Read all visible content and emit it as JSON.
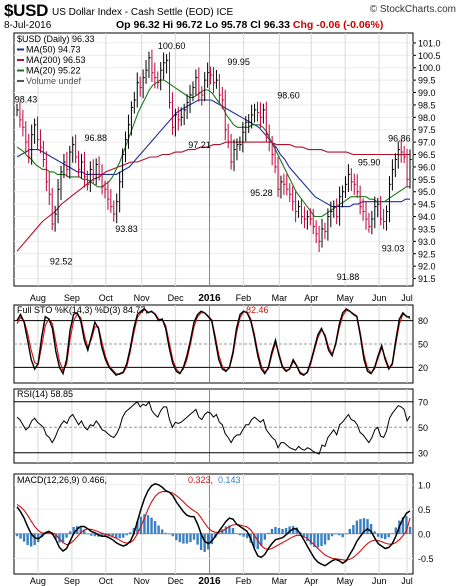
{
  "header": {
    "ticker": "$USD",
    "name": "US Dollar Index - Cash Settle (EOD) ICE",
    "brand": "© StockCharts.com",
    "date": "8-Jul-2016",
    "op": "Op 96.32",
    "hi": "Hi 96.72",
    "lo": "Lo 95.78",
    "cl": "Cl 96.33",
    "chg": "Chg -0.06 (-0.06%)"
  },
  "colors": {
    "price_up": "#000000",
    "price_down": "#c0003c",
    "ma50": "#1f2fa0",
    "ma200": "#b0102a",
    "ma20": "#1a7a1a",
    "sto_k": "#000000",
    "sto_d": "#d01010",
    "rsi": "#000000",
    "macd": "#000000",
    "macd_signal": "#d01010",
    "macd_hist": "#3a7fc0"
  },
  "chart_data": [
    {
      "type": "line",
      "panel": "price",
      "legend": [
        {
          "text": "$USD (Daily) 96.33",
          "color": "#000000"
        },
        {
          "text": "MA(50) 94.73",
          "color": "#1f2fa0"
        },
        {
          "text": "MA(200) 96.53",
          "color": "#b0102a"
        },
        {
          "text": "MA(20) 95.22",
          "color": "#1a7a1a"
        },
        {
          "text": "Volume undef",
          "color": "#555555"
        }
      ],
      "x_ticks": [
        "Aug",
        "Sep",
        "Oct",
        "Nov",
        "Dec",
        "2016",
        "Feb",
        "Mar",
        "Apr",
        "May",
        "Jun",
        "Jul"
      ],
      "y_ticks": [
        91.5,
        92.0,
        92.5,
        93.0,
        93.5,
        94.0,
        94.5,
        95.0,
        95.5,
        96.0,
        96.5,
        97.0,
        97.5,
        98.0,
        98.5,
        99.0,
        99.5,
        100.0,
        100.5,
        101.0
      ],
      "ylim": [
        91.2,
        101.4
      ],
      "annotations": [
        {
          "label": "98.43",
          "x": 0.03,
          "y": 98.43,
          "pos": "above"
        },
        {
          "label": "92.52",
          "x": 0.118,
          "y": 92.52,
          "pos": "below"
        },
        {
          "label": "96.88",
          "x": 0.205,
          "y": 96.88,
          "pos": "above"
        },
        {
          "label": "93.83",
          "x": 0.282,
          "y": 93.83,
          "pos": "below"
        },
        {
          "label": "100.60",
          "x": 0.395,
          "y": 100.6,
          "pos": "above"
        },
        {
          "label": "97.21",
          "x": 0.465,
          "y": 97.21,
          "pos": "below"
        },
        {
          "label": "99.95",
          "x": 0.563,
          "y": 99.95,
          "pos": "above"
        },
        {
          "label": "95.28",
          "x": 0.62,
          "y": 95.28,
          "pos": "below"
        },
        {
          "label": "98.60",
          "x": 0.688,
          "y": 98.6,
          "pos": "above"
        },
        {
          "label": "91.88",
          "x": 0.837,
          "y": 91.88,
          "pos": "below"
        },
        {
          "label": "95.90",
          "x": 0.89,
          "y": 95.9,
          "pos": "above"
        },
        {
          "label": "93.03",
          "x": 0.95,
          "y": 93.03,
          "pos": "below"
        },
        {
          "label": "96.86",
          "x": 0.966,
          "y": 96.86,
          "pos": "above"
        }
      ],
      "price": [
        98.3,
        97.9,
        97.6,
        97.0,
        96.4,
        97.3,
        97.7,
        97.1,
        96.8,
        96.3,
        95.4,
        94.9,
        93.7,
        94.1,
        95.1,
        95.8,
        96.2,
        95.9,
        96.6,
        96.9,
        96.4,
        95.9,
        96.2,
        95.6,
        95.3,
        95.9,
        95.7,
        96.1,
        95.7,
        95.2,
        95.1,
        94.7,
        94.4,
        94.1,
        94.6,
        95.4,
        96.5,
        97.1,
        97.7,
        98.4,
        98.7,
        99.4,
        99.2,
        99.6,
        99.9,
        100.4,
        99.8,
        99.6,
        99.4,
        99.9,
        100.2,
        100.3,
        98.6,
        97.6,
        98.1,
        97.9,
        98.0,
        98.3,
        98.6,
        98.9,
        99.2,
        99.6,
        99.0,
        98.9,
        99.5,
        99.8,
        99.7,
        99.4,
        99.5,
        98.9,
        98.7,
        97.5,
        97.0,
        96.2,
        96.7,
        96.9,
        96.9,
        97.4,
        97.8,
        97.8,
        98.1,
        98.3,
        98.2,
        98.0,
        98.3,
        97.3,
        97.0,
        96.5,
        96.0,
        95.1,
        95.4,
        95.3,
        95.1,
        94.9,
        94.6,
        94.2,
        94.4,
        94.0,
        93.9,
        94.0,
        93.9,
        93.6,
        93.3,
        93.0,
        93.5,
        93.4,
        94.0,
        94.2,
        94.4,
        94.0,
        94.8,
        95.0,
        95.3,
        95.7,
        95.4,
        95.3,
        95.0,
        94.4,
        94.2,
        93.9,
        93.6,
        93.9,
        94.4,
        94.5,
        93.9,
        93.8,
        94.2,
        95.3,
        95.9,
        96.3,
        96.7,
        96.6,
        96.4,
        95.5,
        96.3
      ],
      "ma20": [
        96.8,
        96.7,
        96.6,
        96.4,
        96.3,
        96.1,
        96.0,
        95.9,
        95.9,
        95.8,
        95.8,
        95.7,
        95.7,
        95.7,
        95.6,
        95.6,
        95.6,
        95.6,
        95.5,
        95.5,
        95.4,
        95.3,
        95.2,
        95.2,
        95.3,
        95.4,
        95.6,
        95.9,
        96.2,
        96.6,
        97.0,
        97.4,
        97.8,
        98.2,
        98.5,
        98.8,
        99.1,
        99.3,
        99.4,
        99.5,
        99.5,
        99.4,
        99.3,
        99.2,
        99.1,
        99.0,
        98.9,
        98.8,
        98.8,
        98.9,
        99.0,
        99.1,
        99.1,
        99.0,
        98.8,
        98.6,
        98.4,
        98.1,
        97.9,
        97.7,
        97.6,
        97.6,
        97.6,
        97.6,
        97.7,
        97.7,
        97.7,
        97.6,
        97.4,
        97.1,
        96.8,
        96.5,
        96.2,
        95.9,
        95.6,
        95.3,
        95.0,
        94.8,
        94.6,
        94.4,
        94.2,
        94.0,
        94.0,
        94.0,
        94.1,
        94.2,
        94.3,
        94.4,
        94.5,
        94.6,
        94.7,
        94.8,
        94.8,
        94.8,
        94.8,
        94.8,
        94.7,
        94.7,
        94.6,
        94.6,
        94.6,
        94.7,
        94.8,
        94.9,
        95.0,
        95.1,
        95.2,
        95.2
      ],
      "ma50": [
        96.4,
        96.5,
        96.6,
        96.7,
        96.7,
        96.7,
        96.6,
        96.5,
        96.4,
        96.3,
        96.2,
        96.1,
        96.0,
        95.9,
        95.8,
        95.8,
        95.7,
        95.7,
        95.7,
        95.7,
        95.7,
        95.7,
        95.7,
        95.7,
        95.8,
        95.9,
        96.0,
        96.2,
        96.4,
        96.6,
        96.8,
        97.0,
        97.2,
        97.4,
        97.6,
        97.8,
        98.0,
        98.2,
        98.3,
        98.4,
        98.5,
        98.6,
        98.7,
        98.7,
        98.7,
        98.7,
        98.6,
        98.5,
        98.4,
        98.3,
        98.2,
        98.1,
        98.0,
        97.9,
        97.8,
        97.7,
        97.6,
        97.4,
        97.2,
        97.0,
        96.8,
        96.5,
        96.3,
        96.0,
        95.8,
        95.6,
        95.4,
        95.2,
        95.0,
        94.8,
        94.7,
        94.6,
        94.5,
        94.4,
        94.4,
        94.4,
        94.4,
        94.4,
        94.5,
        94.5,
        94.6,
        94.6,
        94.6,
        94.6,
        94.6,
        94.6,
        94.6,
        94.6,
        94.6,
        94.6,
        94.7,
        94.7
      ],
      "ma200": [
        92.6,
        92.9,
        93.2,
        93.5,
        93.8,
        94.0,
        94.2,
        94.5,
        94.7,
        94.9,
        95.1,
        95.3,
        95.5,
        95.6,
        95.8,
        95.9,
        96.0,
        96.1,
        96.2,
        96.2,
        96.3,
        96.4,
        96.4,
        96.5,
        96.5,
        96.6,
        96.6,
        96.7,
        96.7,
        96.8,
        96.8,
        96.9,
        96.9,
        97.0,
        97.0,
        97.0,
        97.0,
        97.0,
        97.0,
        97.0,
        97.0,
        96.9,
        96.9,
        96.9,
        96.8,
        96.8,
        96.7,
        96.7,
        96.7,
        96.6,
        96.6,
        96.6,
        96.6,
        96.5,
        96.5,
        96.5,
        96.5,
        96.5,
        96.5,
        96.5,
        96.5,
        96.5,
        96.5
      ]
    },
    {
      "type": "line",
      "panel": "stochastic",
      "legend_label": "Full STO %K(14,3) %D(3) 84.77,",
      "legend_value2": "82.46",
      "y_ticks": [
        20,
        50,
        80
      ],
      "ylim": [
        0,
        100
      ],
      "k": [
        80,
        88,
        78,
        55,
        30,
        18,
        25,
        60,
        85,
        82,
        70,
        40,
        20,
        12,
        30,
        68,
        88,
        90,
        80,
        55,
        42,
        60,
        78,
        70,
        45,
        30,
        20,
        15,
        10,
        12,
        14,
        25,
        45,
        70,
        88,
        92,
        95,
        90,
        92,
        88,
        80,
        82,
        70,
        45,
        25,
        15,
        12,
        20,
        35,
        55,
        78,
        88,
        92,
        90,
        85,
        80,
        55,
        30,
        18,
        15,
        20,
        40,
        70,
        88,
        92,
        90,
        80,
        60,
        35,
        18,
        12,
        20,
        40,
        55,
        35,
        20,
        15,
        18,
        30,
        22,
        12,
        10,
        14,
        28,
        45,
        62,
        70,
        60,
        42,
        35,
        50,
        75,
        90,
        95,
        92,
        88,
        85,
        60,
        30,
        15,
        12,
        20,
        35,
        48,
        30,
        18,
        25,
        55,
        82,
        90,
        85,
        84.77
      ],
      "d": [
        76,
        84,
        80,
        64,
        42,
        26,
        24,
        48,
        74,
        82,
        76,
        52,
        28,
        16,
        24,
        56,
        80,
        88,
        84,
        62,
        46,
        56,
        72,
        72,
        52,
        34,
        22,
        17,
        12,
        11,
        13,
        21,
        40,
        64,
        84,
        90,
        94,
        91,
        91,
        89,
        82,
        81,
        74,
        52,
        30,
        18,
        13,
        18,
        30,
        50,
        72,
        85,
        90,
        90,
        86,
        81,
        60,
        36,
        21,
        16,
        19,
        36,
        64,
        84,
        91,
        91,
        82,
        64,
        40,
        22,
        14,
        18,
        36,
        51,
        38,
        22,
        16,
        18,
        27,
        22,
        14,
        11,
        13,
        25,
        42,
        58,
        68,
        62,
        46,
        37,
        48,
        70,
        86,
        93,
        92,
        89,
        86,
        64,
        36,
        19,
        13,
        18,
        32,
        45,
        33,
        20,
        23,
        50,
        76,
        88,
        86,
        82.46
      ]
    },
    {
      "type": "line",
      "panel": "rsi",
      "legend_label": "RSI(14) 58.85",
      "y_ticks": [
        30,
        50,
        70
      ],
      "ylim": [
        22,
        80
      ],
      "values": [
        58,
        56,
        52,
        48,
        50,
        55,
        57,
        54,
        52,
        50,
        44,
        42,
        38,
        42,
        48,
        52,
        55,
        53,
        58,
        60,
        56,
        52,
        55,
        50,
        48,
        52,
        51,
        55,
        52,
        48,
        47,
        45,
        43,
        42,
        45,
        50,
        58,
        62,
        64,
        66,
        68,
        70,
        66,
        68,
        67,
        70,
        63,
        60,
        58,
        63,
        66,
        66,
        56,
        50,
        54,
        53,
        54,
        56,
        58,
        60,
        62,
        64,
        58,
        56,
        60,
        62,
        61,
        58,
        60,
        54,
        52,
        45,
        42,
        38,
        42,
        44,
        44,
        48,
        52,
        52,
        56,
        58,
        56,
        54,
        56,
        48,
        45,
        42,
        40,
        34,
        38,
        38,
        36,
        34,
        33,
        32,
        35,
        33,
        32,
        34,
        33,
        31,
        30,
        29,
        36,
        35,
        42,
        45,
        48,
        44,
        52,
        54,
        57,
        60,
        56,
        55,
        52,
        46,
        44,
        41,
        38,
        42,
        48,
        50,
        43,
        42,
        47,
        57,
        61,
        64,
        67,
        66,
        64,
        55,
        58.85
      ]
    },
    {
      "type": "bar",
      "panel": "macd",
      "legend_label": "MACD(12,26,9) 0.466,",
      "legend_value2": "0.323,",
      "legend_value3": "0.143",
      "y_ticks": [
        -0.5,
        0.0,
        0.5,
        1.0
      ],
      "ylim": [
        -0.82,
        1.22
      ],
      "macd": [
        0.55,
        0.45,
        0.32,
        0.15,
        0.0,
        -0.08,
        -0.1,
        -0.05,
        0.02,
        0.05,
        0.0,
        -0.12,
        -0.28,
        -0.35,
        -0.3,
        -0.15,
        0.0,
        0.1,
        0.15,
        0.15,
        0.1,
        0.05,
        0.02,
        -0.02,
        -0.05,
        -0.05,
        -0.08,
        -0.12,
        -0.18,
        -0.22,
        -0.25,
        -0.22,
        -0.15,
        0.0,
        0.25,
        0.5,
        0.72,
        0.88,
        0.98,
        1.02,
        1.0,
        0.95,
        0.88,
        0.85,
        0.78,
        0.65,
        0.55,
        0.45,
        0.38,
        0.35,
        0.35,
        0.2,
        0.0,
        -0.15,
        -0.2,
        -0.15,
        -0.05,
        0.05,
        0.15,
        0.25,
        0.32,
        0.3,
        0.2,
        0.15,
        0.1,
        0.05,
        -0.1,
        -0.3,
        -0.45,
        -0.48,
        -0.42,
        -0.3,
        -0.2,
        -0.12,
        -0.1,
        -0.08,
        -0.02,
        0.05,
        0.1,
        0.1,
        0.0,
        -0.12,
        -0.25,
        -0.38,
        -0.5,
        -0.58,
        -0.62,
        -0.65,
        -0.6,
        -0.55,
        -0.52,
        -0.55,
        -0.6,
        -0.55,
        -0.42,
        -0.3,
        -0.15,
        -0.05,
        0.05,
        0.1,
        0.05,
        -0.08,
        -0.2,
        -0.25,
        -0.3,
        -0.28,
        -0.2,
        -0.05,
        0.15,
        0.3,
        0.42,
        0.466
      ],
      "signal": [
        0.6,
        0.55,
        0.48,
        0.38,
        0.26,
        0.15,
        0.07,
        0.02,
        0.01,
        0.02,
        0.02,
        -0.02,
        -0.1,
        -0.18,
        -0.22,
        -0.2,
        -0.14,
        -0.06,
        0.02,
        0.08,
        0.1,
        0.09,
        0.07,
        0.04,
        0.01,
        -0.01,
        -0.03,
        -0.06,
        -0.09,
        -0.13,
        -0.17,
        -0.19,
        -0.18,
        -0.12,
        0.0,
        0.15,
        0.32,
        0.5,
        0.65,
        0.76,
        0.83,
        0.86,
        0.86,
        0.85,
        0.83,
        0.78,
        0.72,
        0.65,
        0.58,
        0.52,
        0.47,
        0.42,
        0.33,
        0.22,
        0.12,
        0.06,
        0.03,
        0.03,
        0.06,
        0.1,
        0.15,
        0.18,
        0.19,
        0.18,
        0.16,
        0.14,
        0.08,
        -0.02,
        -0.14,
        -0.24,
        -0.3,
        -0.32,
        -0.3,
        -0.26,
        -0.22,
        -0.18,
        -0.14,
        -0.1,
        -0.06,
        -0.03,
        -0.03,
        -0.06,
        -0.1,
        -0.16,
        -0.23,
        -0.3,
        -0.37,
        -0.43,
        -0.47,
        -0.5,
        -0.51,
        -0.52,
        -0.53,
        -0.54,
        -0.52,
        -0.48,
        -0.42,
        -0.35,
        -0.27,
        -0.2,
        -0.15,
        -0.13,
        -0.14,
        -0.16,
        -0.19,
        -0.21,
        -0.21,
        -0.18,
        -0.12,
        -0.04,
        0.06,
        0.323
      ]
    }
  ]
}
